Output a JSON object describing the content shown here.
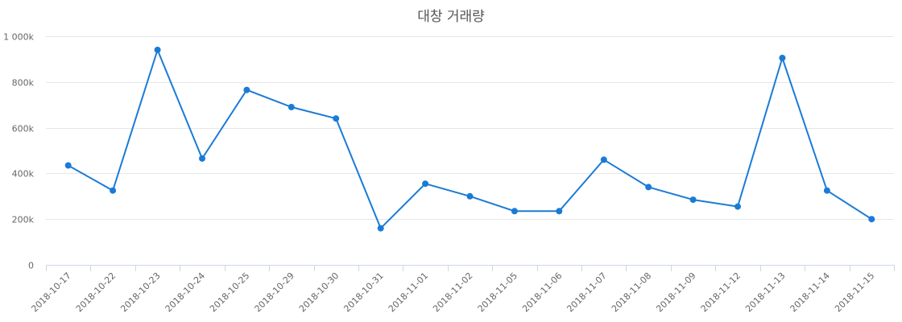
{
  "chart_data": {
    "type": "line",
    "title": "대창 거래량",
    "xlabel": "",
    "ylabel": "",
    "ylim": [
      0,
      1000000
    ],
    "yticks": [
      0,
      200000,
      400000,
      600000,
      800000,
      1000000
    ],
    "ytick_labels": [
      "0",
      "200k",
      "400k",
      "600k",
      "800k",
      "1 000k"
    ],
    "grid": true,
    "legend": "none",
    "categories": [
      "2018-10-17",
      "2018-10-22",
      "2018-10-23",
      "2018-10-24",
      "2018-10-25",
      "2018-10-29",
      "2018-10-30",
      "2018-10-31",
      "2018-11-01",
      "2018-11-02",
      "2018-11-05",
      "2018-11-06",
      "2018-11-07",
      "2018-11-08",
      "2018-11-09",
      "2018-11-12",
      "2018-11-13",
      "2018-11-14",
      "2018-11-15"
    ],
    "series": [
      {
        "color": "#1a7bd6",
        "values": [
          435000,
          325000,
          940000,
          465000,
          765000,
          690000,
          640000,
          160000,
          355000,
          300000,
          235000,
          235000,
          460000,
          340000,
          285000,
          255000,
          905000,
          325000,
          200000
        ]
      }
    ]
  }
}
